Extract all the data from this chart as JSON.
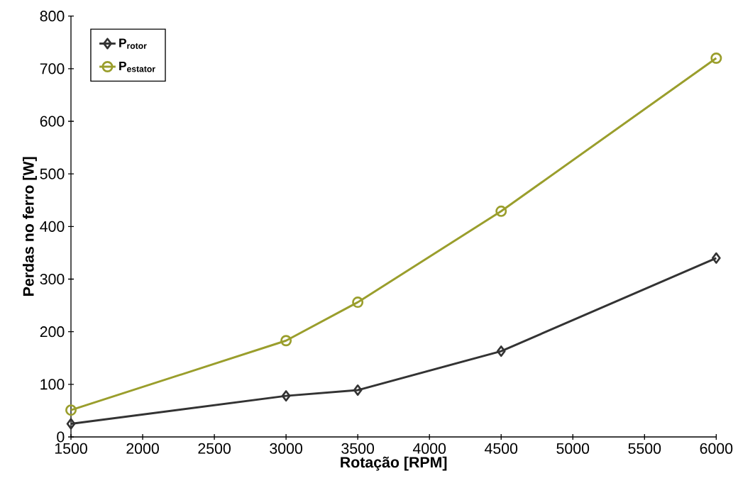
{
  "chart_data": {
    "type": "line",
    "xlabel": "Rotação [RPM]",
    "ylabel": "Perdas no ferro [W]",
    "x": [
      1500,
      3000,
      3500,
      4500,
      6000
    ],
    "series": [
      {
        "name": "P$_{rotor}$",
        "color": "#333333",
        "marker": "diamond",
        "values": [
          25,
          78,
          89,
          163,
          340
        ]
      },
      {
        "name": "P$_{estator}$",
        "color": "#9a9e2c",
        "marker": "circle",
        "values": [
          51,
          183,
          256,
          429,
          720
        ]
      }
    ],
    "xlim": [
      1500,
      6000
    ],
    "xticks": [
      1500,
      2000,
      2500,
      3000,
      3500,
      4000,
      4500,
      5000,
      5500,
      6000
    ],
    "ylim": [
      0,
      800
    ],
    "yticks": [
      0,
      100,
      200,
      300,
      400,
      500,
      600,
      700,
      800
    ],
    "grid": false,
    "legend": "top left",
    "line_style": "solid"
  }
}
